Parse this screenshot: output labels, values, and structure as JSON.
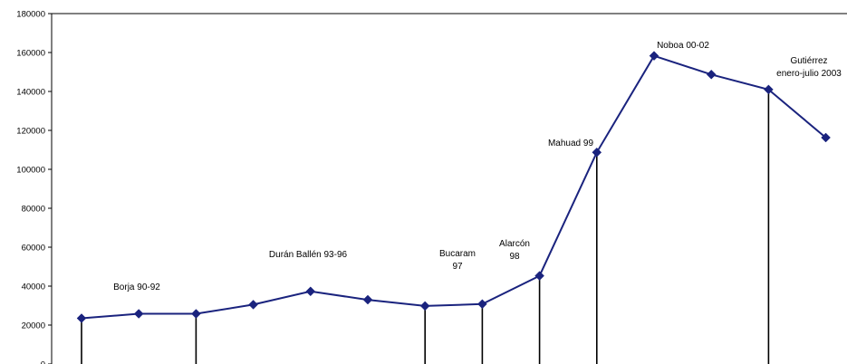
{
  "chart_data": {
    "type": "line",
    "title": "",
    "xlabel": "",
    "ylabel": "",
    "ylim": [
      0,
      180000
    ],
    "yticks": [
      0,
      20000,
      40000,
      60000,
      80000,
      100000,
      120000,
      140000,
      160000,
      180000
    ],
    "ytick_labels": [
      "0",
      "20000",
      "40000",
      "60000",
      "80000",
      "100000",
      "120000",
      "140000",
      "160000",
      "180000"
    ],
    "grid": false,
    "legend": "none",
    "series_color": "#1a237e",
    "values": [
      23500,
      25800,
      25800,
      30500,
      37300,
      33000,
      29800,
      30800,
      45300,
      108700,
      158300,
      148700,
      141000,
      116300
    ],
    "period_dividers": [
      0,
      2,
      6,
      7,
      8,
      9,
      12
    ],
    "annotations": [
      {
        "lines": [
          "Borja 90-92"
        ],
        "anchor": "middle"
      },
      {
        "lines": [
          "Durán Ballén 93-96"
        ],
        "anchor": "middle"
      },
      {
        "lines": [
          "Bucaram",
          "97"
        ],
        "anchor": "middle"
      },
      {
        "lines": [
          "Alarcón",
          "98"
        ],
        "anchor": "middle"
      },
      {
        "lines": [
          "Mahuad 99"
        ],
        "anchor": "middle"
      },
      {
        "lines": [
          "Noboa 00-02"
        ],
        "anchor": "middle"
      },
      {
        "lines": [
          "Gutiérrez",
          "enero-julio 2003"
        ],
        "anchor": "middle"
      }
    ]
  }
}
